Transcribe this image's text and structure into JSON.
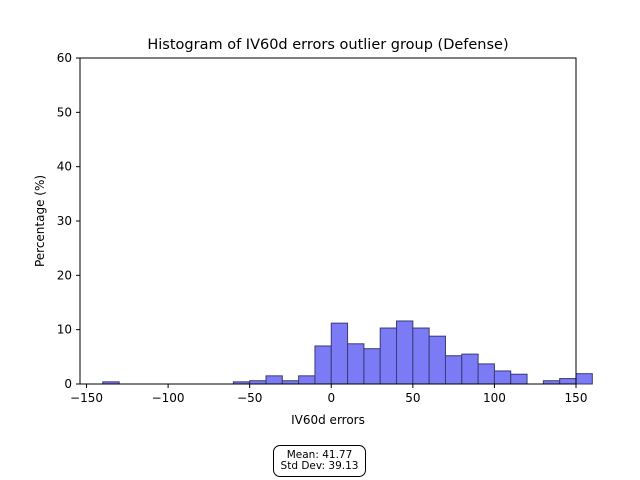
{
  "chart_data": {
    "type": "bar",
    "title": "Histogram of IV60d errors outlier group (Defense)",
    "xlabel": "IV60d errors",
    "ylabel": "Percentage (%)",
    "xlim": [
      -154,
      150
    ],
    "ylim": [
      0,
      60
    ],
    "xticks": [
      -150,
      -100,
      -50,
      0,
      50,
      100,
      150
    ],
    "xtick_labels": [
      "−150",
      "−100",
      "−50",
      "0",
      "50",
      "100",
      "150"
    ],
    "yticks": [
      0,
      10,
      20,
      30,
      40,
      50,
      60
    ],
    "ytick_labels": [
      "0",
      "10",
      "20",
      "30",
      "40",
      "50",
      "60"
    ],
    "bar_color": "#7b7bf5",
    "bar_edge": "#3a3a78",
    "bins": [
      {
        "x0": -140,
        "x1": -130,
        "value": 0.4
      },
      {
        "x0": -60,
        "x1": -50,
        "value": 0.4
      },
      {
        "x0": -50,
        "x1": -40,
        "value": 0.6
      },
      {
        "x0": -40,
        "x1": -30,
        "value": 1.5
      },
      {
        "x0": -30,
        "x1": -20,
        "value": 0.6
      },
      {
        "x0": -20,
        "x1": -10,
        "value": 1.5
      },
      {
        "x0": -10,
        "x1": 0,
        "value": 7.0
      },
      {
        "x0": 0,
        "x1": 10,
        "value": 11.2
      },
      {
        "x0": 10,
        "x1": 20,
        "value": 7.4
      },
      {
        "x0": 20,
        "x1": 30,
        "value": 6.5
      },
      {
        "x0": 30,
        "x1": 40,
        "value": 10.3
      },
      {
        "x0": 40,
        "x1": 50,
        "value": 11.6
      },
      {
        "x0": 50,
        "x1": 60,
        "value": 10.3
      },
      {
        "x0": 60,
        "x1": 70,
        "value": 8.8
      },
      {
        "x0": 70,
        "x1": 80,
        "value": 5.2
      },
      {
        "x0": 80,
        "x1": 90,
        "value": 5.5
      },
      {
        "x0": 90,
        "x1": 100,
        "value": 3.7
      },
      {
        "x0": 100,
        "x1": 110,
        "value": 2.4
      },
      {
        "x0": 110,
        "x1": 120,
        "value": 1.8
      },
      {
        "x0": 130,
        "x1": 140,
        "value": 0.6
      },
      {
        "x0": 140,
        "x1": 150,
        "value": 1.0
      },
      {
        "x0": 150,
        "x1": 160,
        "value": 1.9
      }
    ]
  },
  "stats": {
    "mean": "Mean: 41.77",
    "std": "Std Dev: 39.13"
  }
}
